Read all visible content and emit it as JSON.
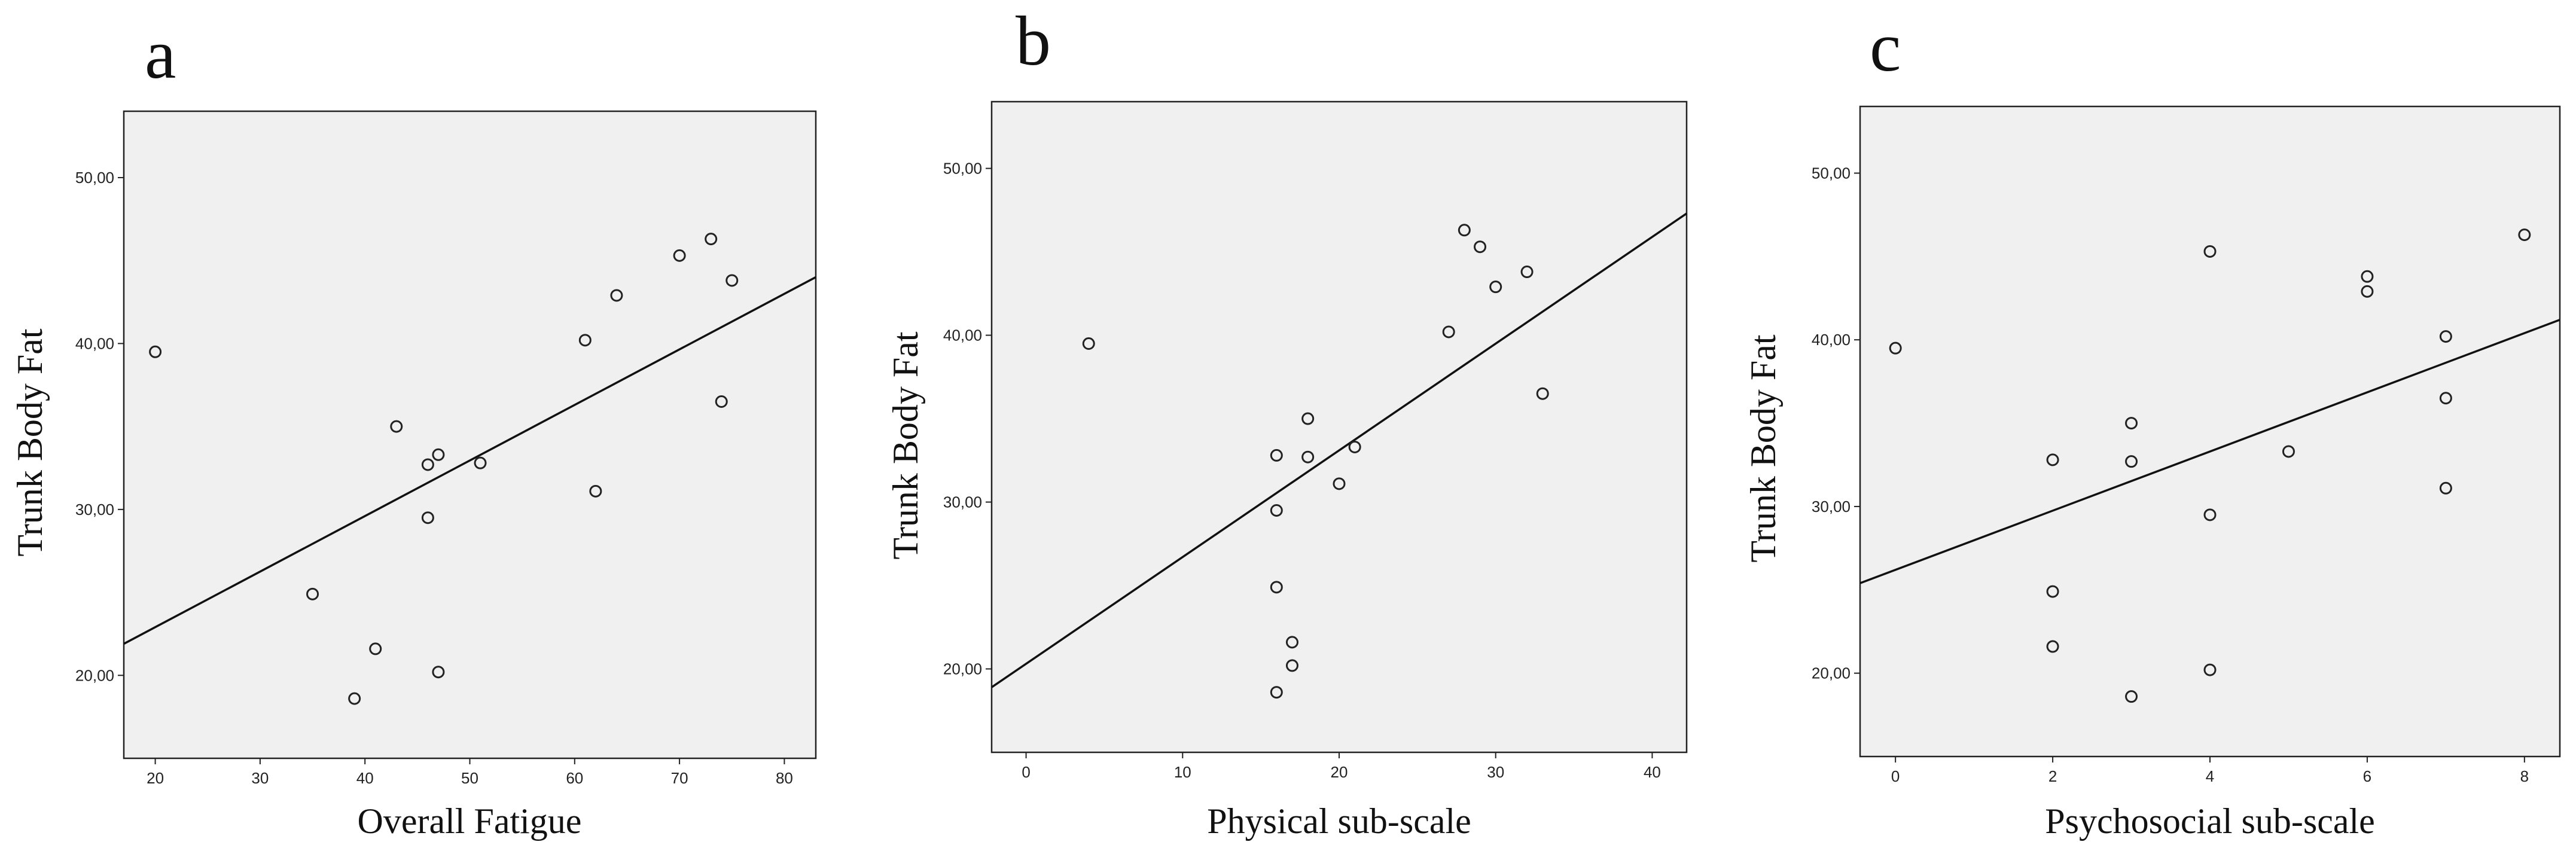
{
  "chart_data": [
    {
      "panel": "a",
      "type": "scatter",
      "xlabel": "Overall Fatigue",
      "ylabel": "Trunk Body  Fat",
      "xlim": [
        17,
        83
      ],
      "ylim": [
        15,
        54
      ],
      "xticks": [
        "20",
        "30",
        "40",
        "50",
        "60",
        "70",
        "80"
      ],
      "xtick_values": [
        20,
        30,
        40,
        50,
        60,
        70,
        80
      ],
      "yticks": [
        "20,00",
        "30,00",
        "40,00",
        "50,00"
      ],
      "ytick_values": [
        20,
        30,
        40,
        50
      ],
      "points": [
        [
          20,
          39.5
        ],
        [
          35,
          24.9
        ],
        [
          39,
          18.6
        ],
        [
          41,
          21.6
        ],
        [
          43,
          35.0
        ],
        [
          46,
          32.7
        ],
        [
          46,
          29.5
        ],
        [
          47,
          33.3
        ],
        [
          47,
          20.2
        ],
        [
          51,
          32.8
        ],
        [
          61,
          40.2
        ],
        [
          62,
          31.1
        ],
        [
          64,
          42.9
        ],
        [
          70,
          45.3
        ],
        [
          73,
          46.3
        ],
        [
          74,
          36.5
        ],
        [
          75,
          43.8
        ]
      ],
      "fit_line": {
        "x": [
          17,
          83
        ],
        "y": [
          21.9,
          44.0
        ]
      },
      "grid": false
    },
    {
      "panel": "b",
      "type": "scatter",
      "xlabel": "Physical sub-scale",
      "ylabel": "Trunk Body  Fat",
      "xlim": [
        -2.2,
        42.2
      ],
      "ylim": [
        15,
        54
      ],
      "xticks": [
        "0",
        "10",
        "20",
        "30",
        "40"
      ],
      "xtick_values": [
        0,
        10,
        20,
        30,
        40
      ],
      "yticks": [
        "20,00",
        "30,00",
        "40,00",
        "50,00"
      ],
      "ytick_values": [
        20,
        30,
        40,
        50
      ],
      "points": [
        [
          4,
          39.5
        ],
        [
          16,
          32.8
        ],
        [
          16,
          29.5
        ],
        [
          16,
          24.9
        ],
        [
          16,
          18.6
        ],
        [
          17,
          21.6
        ],
        [
          17,
          20.2
        ],
        [
          18,
          35.0
        ],
        [
          18,
          32.7
        ],
        [
          20,
          31.1
        ],
        [
          21,
          33.3
        ],
        [
          27,
          40.2
        ],
        [
          28,
          46.3
        ],
        [
          29,
          45.3
        ],
        [
          30,
          42.9
        ],
        [
          32,
          43.8
        ],
        [
          33,
          36.5
        ]
      ],
      "fit_line": {
        "x": [
          -2.2,
          42.2
        ],
        "y": [
          18.9,
          47.3
        ]
      },
      "grid": false
    },
    {
      "panel": "c",
      "type": "scatter",
      "xlabel": "Psychosocial sub-scale",
      "ylabel": "Trunk Body  Fat",
      "xlim": [
        -0.45,
        8.45
      ],
      "ylim": [
        15,
        54
      ],
      "xticks": [
        "0",
        "2",
        "4",
        "6",
        "8"
      ],
      "xtick_values": [
        0,
        2,
        4,
        6,
        8
      ],
      "yticks": [
        "20,00",
        "30,00",
        "40,00",
        "50,00"
      ],
      "ytick_values": [
        20,
        30,
        40,
        50
      ],
      "points": [
        [
          0,
          39.5
        ],
        [
          2,
          32.8
        ],
        [
          2,
          24.9
        ],
        [
          2,
          21.6
        ],
        [
          3,
          35.0
        ],
        [
          3,
          32.7
        ],
        [
          3,
          18.6
        ],
        [
          4,
          45.3
        ],
        [
          4,
          29.5
        ],
        [
          4,
          20.2
        ],
        [
          5,
          33.3
        ],
        [
          6,
          43.8
        ],
        [
          6,
          42.9
        ],
        [
          7,
          40.2
        ],
        [
          7,
          36.5
        ],
        [
          7,
          31.1
        ],
        [
          8,
          46.3
        ]
      ],
      "fit_line": {
        "x": [
          -0.45,
          8.45
        ],
        "y": [
          25.4,
          41.2
        ]
      },
      "grid": false
    }
  ]
}
